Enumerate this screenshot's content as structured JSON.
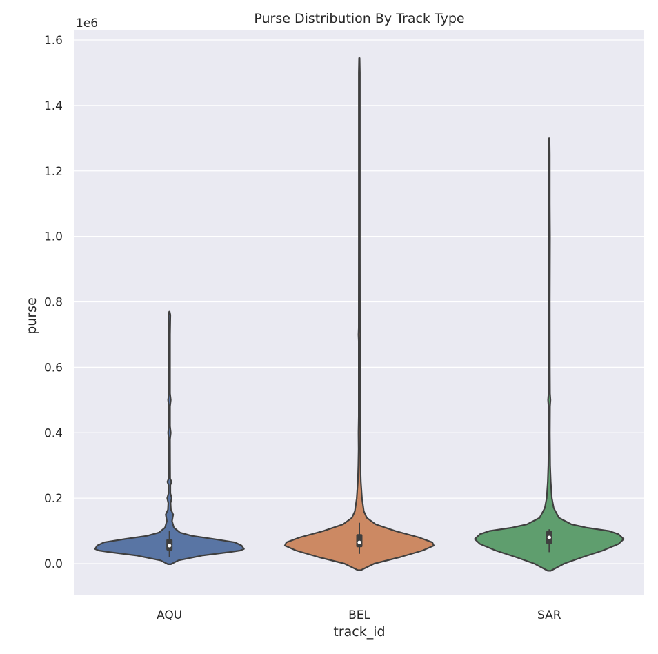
{
  "chart_data": {
    "type": "violin",
    "title": "Purse Distribution By Track Type",
    "xlabel": "track_id",
    "ylabel": "purse",
    "y_offset_text": "1e6",
    "y_scale_factor": 1000000,
    "ylim": [
      -0.1,
      1.63
    ],
    "yticks": [
      0.0,
      0.2,
      0.4,
      0.6,
      0.8,
      1.0,
      1.2,
      1.4,
      1.6
    ],
    "ytick_labels": [
      "0.0",
      "0.2",
      "0.4",
      "0.6",
      "0.8",
      "1.0",
      "1.2",
      "1.4",
      "1.6"
    ],
    "grid": true,
    "legend": "none",
    "categories": [
      "AQU",
      "BEL",
      "SAR"
    ],
    "series": [
      {
        "category": "AQU",
        "color": "#5975a4",
        "density": [
          [
            -0.002,
            0.02
          ],
          [
            0.01,
            0.12
          ],
          [
            0.025,
            0.45
          ],
          [
            0.035,
            0.8
          ],
          [
            0.04,
            0.95
          ],
          [
            0.045,
            1.0
          ],
          [
            0.055,
            0.97
          ],
          [
            0.065,
            0.88
          ],
          [
            0.075,
            0.6
          ],
          [
            0.085,
            0.3
          ],
          [
            0.095,
            0.14
          ],
          [
            0.11,
            0.06
          ],
          [
            0.13,
            0.035
          ],
          [
            0.15,
            0.05
          ],
          [
            0.165,
            0.02
          ],
          [
            0.185,
            0.015
          ],
          [
            0.2,
            0.03
          ],
          [
            0.215,
            0.012
          ],
          [
            0.24,
            0.012
          ],
          [
            0.25,
            0.028
          ],
          [
            0.26,
            0.01
          ],
          [
            0.3,
            0.009
          ],
          [
            0.38,
            0.008
          ],
          [
            0.4,
            0.018
          ],
          [
            0.42,
            0.008
          ],
          [
            0.48,
            0.008
          ],
          [
            0.5,
            0.018
          ],
          [
            0.52,
            0.008
          ],
          [
            0.6,
            0.008
          ],
          [
            0.7,
            0.008
          ],
          [
            0.76,
            0.012
          ],
          [
            0.77,
            0.003
          ]
        ],
        "q1": 0.04,
        "median": 0.055,
        "q3": 0.075,
        "whisker_low": 0.02,
        "whisker_high": 0.1
      },
      {
        "category": "BEL",
        "color": "#cc8963",
        "density": [
          [
            -0.02,
            0.02
          ],
          [
            0.0,
            0.2
          ],
          [
            0.02,
            0.55
          ],
          [
            0.04,
            0.85
          ],
          [
            0.055,
            1.0
          ],
          [
            0.065,
            0.98
          ],
          [
            0.08,
            0.8
          ],
          [
            0.1,
            0.48
          ],
          [
            0.12,
            0.22
          ],
          [
            0.14,
            0.1
          ],
          [
            0.16,
            0.06
          ],
          [
            0.2,
            0.035
          ],
          [
            0.25,
            0.02
          ],
          [
            0.3,
            0.014
          ],
          [
            0.35,
            0.01
          ],
          [
            0.4,
            0.012
          ],
          [
            0.45,
            0.008
          ],
          [
            0.6,
            0.008
          ],
          [
            0.68,
            0.008
          ],
          [
            0.7,
            0.012
          ],
          [
            0.72,
            0.008
          ],
          [
            1.0,
            0.007
          ],
          [
            1.3,
            0.007
          ],
          [
            1.5,
            0.007
          ],
          [
            1.545,
            0.004
          ]
        ],
        "q1": 0.05,
        "median": 0.065,
        "q3": 0.09,
        "whisker_low": 0.03,
        "whisker_high": 0.125
      },
      {
        "category": "SAR",
        "color": "#5f9e6e",
        "density": [
          [
            -0.022,
            0.02
          ],
          [
            0.0,
            0.2
          ],
          [
            0.02,
            0.45
          ],
          [
            0.04,
            0.72
          ],
          [
            0.06,
            0.93
          ],
          [
            0.075,
            1.0
          ],
          [
            0.09,
            0.93
          ],
          [
            0.1,
            0.8
          ],
          [
            0.11,
            0.5
          ],
          [
            0.12,
            0.3
          ],
          [
            0.14,
            0.13
          ],
          [
            0.17,
            0.06
          ],
          [
            0.2,
            0.035
          ],
          [
            0.25,
            0.02
          ],
          [
            0.3,
            0.012
          ],
          [
            0.4,
            0.008
          ],
          [
            0.48,
            0.01
          ],
          [
            0.5,
            0.016
          ],
          [
            0.52,
            0.01
          ],
          [
            0.6,
            0.008
          ],
          [
            0.8,
            0.007
          ],
          [
            1.0,
            0.01
          ],
          [
            1.1,
            0.007
          ],
          [
            1.25,
            0.007
          ],
          [
            1.3,
            0.004
          ]
        ],
        "q1": 0.06,
        "median": 0.08,
        "q3": 0.1,
        "whisker_low": 0.035,
        "whisker_high": 0.105
      }
    ]
  }
}
